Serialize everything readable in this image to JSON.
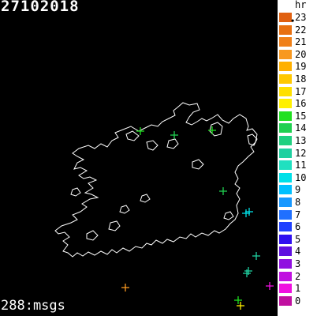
{
  "header": {
    "date": "27102018"
  },
  "footer": {
    "count_text": "288:msgs"
  },
  "legend": {
    "unit": "hr",
    "items": [
      {
        "label": "23",
        "color": "#e06010",
        "current": true
      },
      {
        "label": "22",
        "color": "#e87010"
      },
      {
        "label": "21",
        "color": "#f08018"
      },
      {
        "label": "20",
        "color": "#f89820"
      },
      {
        "label": "19",
        "color": "#ffb000"
      },
      {
        "label": "18",
        "color": "#ffc800"
      },
      {
        "label": "17",
        "color": "#ffe000"
      },
      {
        "label": "16",
        "color": "#fff000"
      },
      {
        "label": "15",
        "color": "#20e020"
      },
      {
        "label": "14",
        "color": "#20d050"
      },
      {
        "label": "13",
        "color": "#20d080"
      },
      {
        "label": "12",
        "color": "#20d0a0"
      },
      {
        "label": "11",
        "color": "#20e0c0"
      },
      {
        "label": "10",
        "color": "#00e0e8"
      },
      {
        "label": "9",
        "color": "#00c0ff"
      },
      {
        "label": "8",
        "color": "#1898ff"
      },
      {
        "label": "7",
        "color": "#2070ff"
      },
      {
        "label": "6",
        "color": "#2040ff"
      },
      {
        "label": "5",
        "color": "#3010f0"
      },
      {
        "label": "4",
        "color": "#6010e0"
      },
      {
        "label": "3",
        "color": "#9010e0"
      },
      {
        "label": "2",
        "color": "#c010e0"
      },
      {
        "label": "1",
        "color": "#f010e0"
      },
      {
        "label": "0",
        "color": "#c010a0"
      }
    ]
  },
  "strikes": [
    {
      "hour": 15,
      "color": "#20e020"
    },
    {
      "hour": 14,
      "color": "#20d050"
    },
    {
      "hour": 15,
      "color": "#20e020"
    },
    {
      "hour": 14,
      "color": "#20d050"
    },
    {
      "hour": 10,
      "color": "#00e0e8"
    },
    {
      "hour": 10,
      "color": "#00e0e8"
    },
    {
      "hour": 12,
      "color": "#20d0a0"
    },
    {
      "hour": 12,
      "color": "#20d0a0"
    },
    {
      "hour": 12,
      "color": "#20d0a0"
    },
    {
      "hour": 20,
      "color": "#f89820"
    },
    {
      "hour": 1,
      "color": "#f010e0"
    },
    {
      "hour": 15,
      "color": "#20e020"
    },
    {
      "hour": 16,
      "color": "#fff000"
    }
  ]
}
